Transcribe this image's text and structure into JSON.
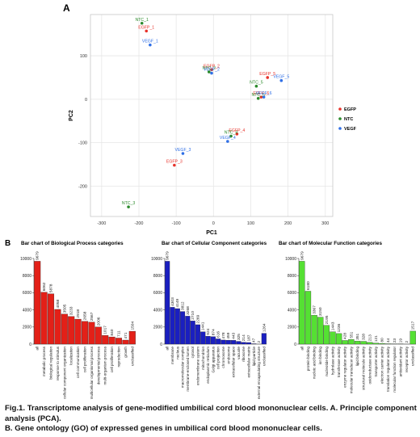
{
  "panel_a_letter": "A",
  "panel_b_letter": "B",
  "caption": {
    "line1": "Fig.1. Transcriptome analysis of gene-modified umbilical cord blood mononuclear cells. A. Principle component analysis (PCA).",
    "line2": "B. Gene ontology (GO) of expressed genes in umbilical cord blood mononuclear cells."
  },
  "colors": {
    "EGFP": "#e8322a",
    "NTC": "#2a8a2a",
    "VEGF": "#2f6fe6",
    "bp_bar": "#e32018",
    "cc_bar": "#1a1fc0",
    "mf_bar": "#55e033"
  },
  "chart_data": [
    {
      "type": "scatter",
      "title": "",
      "xlabel": "PC1",
      "ylabel": "PC2",
      "xlim": [
        -330,
        320
      ],
      "ylim": [
        -270,
        195
      ],
      "xticks": [
        -300,
        -200,
        -100,
        0,
        100,
        200,
        300
      ],
      "yticks": [
        -200,
        -100,
        0,
        100
      ],
      "grid": true,
      "legend": "right",
      "series": [
        {
          "name": "EGFP",
          "points": [
            {
              "label": "EGFP_1",
              "x": -180,
              "y": 157
            },
            {
              "label": "EGFP_2",
              "x": -5,
              "y": 68
            },
            {
              "label": "EGFP_3",
              "x": -105,
              "y": -152
            },
            {
              "label": "EGFP_4",
              "x": 63,
              "y": -80
            },
            {
              "label": "EGFP_5",
              "x": 145,
              "y": 50
            },
            {
              "label": "EGFP_6",
              "x": 128,
              "y": 5
            }
          ]
        },
        {
          "name": "NTC",
          "points": [
            {
              "label": "NTC_1",
              "x": -192,
              "y": 175
            },
            {
              "label": "NTC_2",
              "x": -12,
              "y": 63
            },
            {
              "label": "NTC_3",
              "x": -228,
              "y": -248
            },
            {
              "label": "NTC_4",
              "x": 47,
              "y": -85
            },
            {
              "label": "NTC_5",
              "x": 115,
              "y": 30
            },
            {
              "label": "NTC_6",
              "x": 120,
              "y": 2
            }
          ]
        },
        {
          "name": "VEGF",
          "points": [
            {
              "label": "VEGF_1",
              "x": -170,
              "y": 125
            },
            {
              "label": "VEGF_2",
              "x": -5,
              "y": 60
            },
            {
              "label": "VEGF_3",
              "x": -82,
              "y": -125
            },
            {
              "label": "VEGF_4",
              "x": 38,
              "y": -97
            },
            {
              "label": "VEGF_5",
              "x": 182,
              "y": 43
            },
            {
              "label": "VEGF_6",
              "x": 135,
              "y": 5
            }
          ]
        }
      ]
    },
    {
      "type": "bar",
      "title": "Bar chart of Biological Process categories",
      "ylim": [
        0,
        10000
      ],
      "yticks": [
        0,
        2000,
        4000,
        6000,
        8000,
        10000
      ],
      "categories": [
        "all",
        "metabolic process",
        "biological regulation",
        "response to stimulus",
        "cellular component organization",
        "localization",
        "cell communication",
        "cell proliferation",
        "multicellular organismal process",
        "developmental process",
        "multi-organism process",
        "cell proliferation",
        "reproduction",
        "growth",
        "unclassified"
      ],
      "values": [
        9679,
        6062,
        5878,
        4058,
        3505,
        3233,
        2918,
        2658,
        2567,
        2006,
        1017,
        840,
        711,
        471,
        1504
      ]
    },
    {
      "type": "bar",
      "title": "Bar chart of Cellular Component categories",
      "ylim": [
        0,
        10000
      ],
      "yticks": [
        0,
        2000,
        4000,
        6000,
        8000,
        10000
      ],
      "categories": [
        "all",
        "membrane",
        "nucleus",
        "macromolecular complex",
        "membrane-enclosed lumen",
        "cytosol",
        "endomembrane system",
        "mitochondrion",
        "endoplasmic reticulum",
        "Golgi apparatus",
        "cell projection",
        "chromosome",
        "endosome",
        "extracellular space",
        "vacuole",
        "ribosome",
        "extracellular matrix",
        "lipid particle",
        "external encapsulating structure",
        "unclassified"
      ],
      "values": [
        9679,
        4303,
        4149,
        3812,
        3268,
        2710,
        2269,
        1441,
        924,
        874,
        616,
        478,
        459,
        443,
        325,
        214,
        187,
        47,
        2,
        1264
      ]
    },
    {
      "type": "bar",
      "title": "Bar chart of Molecular Function categories",
      "ylim": [
        0,
        10000
      ],
      "yticks": [
        0,
        2000,
        4000,
        6000,
        8000,
        10000
      ],
      "categories": [
        "all",
        "protein binding",
        "nucleic acid binding",
        "ion binding",
        "nucleotide binding",
        "hydrolase activity",
        "transferase activity",
        "enzyme regulator activity",
        "molecular transducer activity",
        "lipid binding",
        "structural molecule activity",
        "oxidoreductase activity",
        "transporter activity",
        "electron carrier activity",
        "translation regulator activity",
        "molecular function regulator",
        "antioxidant activity",
        "receptor activity",
        "unclassified"
      ],
      "values": [
        9679,
        6180,
        3367,
        3150,
        2195,
        1443,
        1236,
        428,
        551,
        351,
        328,
        213,
        121,
        80,
        44,
        23,
        19,
        2,
        1517
      ]
    }
  ]
}
